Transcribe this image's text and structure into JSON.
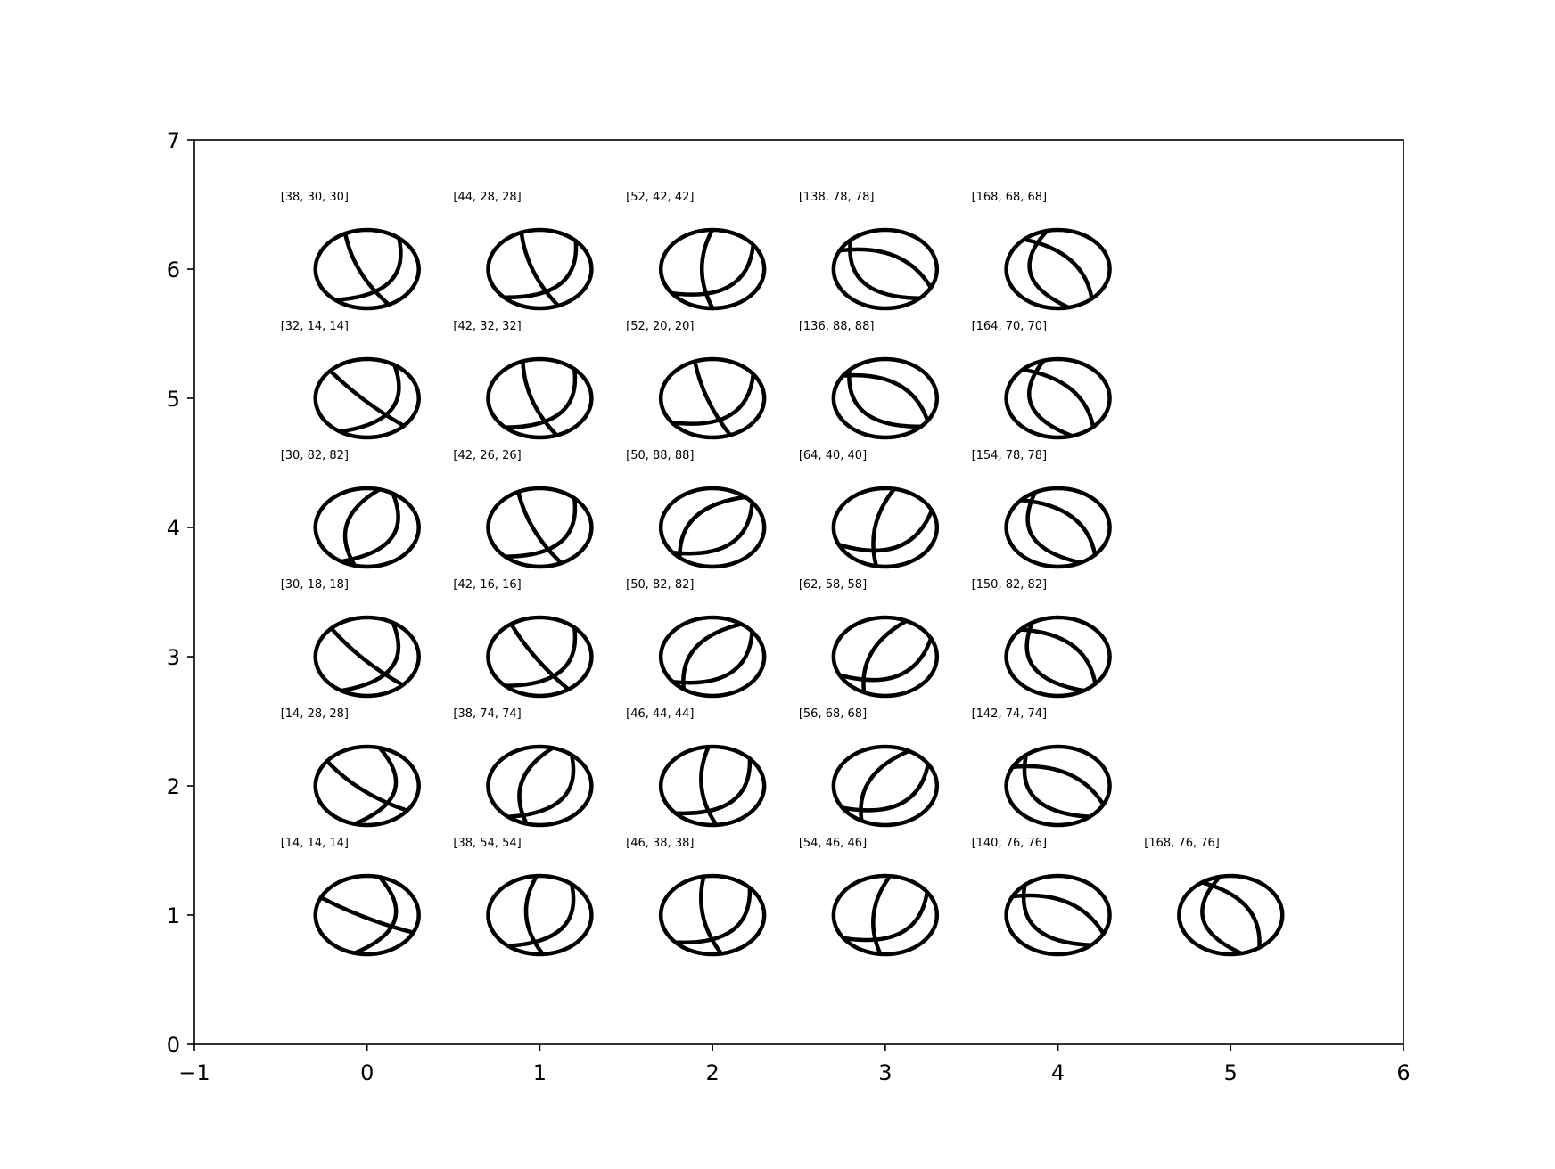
{
  "chart_data": {
    "type": "scatter",
    "title": "",
    "xlabel": "",
    "ylabel": "",
    "xlim": [
      -1,
      6
    ],
    "ylim": [
      0,
      7
    ],
    "xticks": [
      -1,
      0,
      1,
      2,
      3,
      4,
      5,
      6
    ],
    "yticks": [
      0,
      1,
      2,
      3,
      4,
      5,
      6,
      7
    ],
    "xtick_labels": [
      "−1",
      "0",
      "1",
      "2",
      "3",
      "4",
      "5",
      "6"
    ],
    "ytick_labels": [
      "0",
      "1",
      "2",
      "3",
      "4",
      "5",
      "6",
      "7"
    ],
    "marker": "beachball",
    "color": "#000000",
    "points": [
      {
        "x": 0,
        "y": 6,
        "label": "[38, 30, 30]",
        "strike": 38,
        "dip": 30,
        "rake": 30
      },
      {
        "x": 1,
        "y": 6,
        "label": "[44, 28, 28]",
        "strike": 44,
        "dip": 28,
        "rake": 28
      },
      {
        "x": 2,
        "y": 6,
        "label": "[52, 42, 42]",
        "strike": 52,
        "dip": 42,
        "rake": 42
      },
      {
        "x": 3,
        "y": 6,
        "label": "[138, 78, 78]",
        "strike": 138,
        "dip": 78,
        "rake": 78
      },
      {
        "x": 4,
        "y": 6,
        "label": "[168, 68, 68]",
        "strike": 168,
        "dip": 68,
        "rake": 68
      },
      {
        "x": 0,
        "y": 5,
        "label": "[32, 14, 14]",
        "strike": 32,
        "dip": 14,
        "rake": 14
      },
      {
        "x": 1,
        "y": 5,
        "label": "[42, 32, 32]",
        "strike": 42,
        "dip": 32,
        "rake": 32
      },
      {
        "x": 2,
        "y": 5,
        "label": "[52, 20, 20]",
        "strike": 52,
        "dip": 20,
        "rake": 20
      },
      {
        "x": 3,
        "y": 5,
        "label": "[136, 88, 88]",
        "strike": 136,
        "dip": 88,
        "rake": 88
      },
      {
        "x": 4,
        "y": 5,
        "label": "[164, 70, 70]",
        "strike": 164,
        "dip": 70,
        "rake": 70
      },
      {
        "x": 0,
        "y": 4,
        "label": "[30, 82, 82]",
        "strike": 30,
        "dip": 82,
        "rake": 82
      },
      {
        "x": 1,
        "y": 4,
        "label": "[42, 26, 26]",
        "strike": 42,
        "dip": 26,
        "rake": 26
      },
      {
        "x": 2,
        "y": 4,
        "label": "[50, 88, 88]",
        "strike": 50,
        "dip": 88,
        "rake": 88
      },
      {
        "x": 3,
        "y": 4,
        "label": "[64, 40, 40]",
        "strike": 64,
        "dip": 40,
        "rake": 40
      },
      {
        "x": 4,
        "y": 4,
        "label": "[154, 78, 78]",
        "strike": 154,
        "dip": 78,
        "rake": 78
      },
      {
        "x": 0,
        "y": 3,
        "label": "[30, 18, 18]",
        "strike": 30,
        "dip": 18,
        "rake": 18
      },
      {
        "x": 1,
        "y": 3,
        "label": "[42, 16, 16]",
        "strike": 42,
        "dip": 16,
        "rake": 16
      },
      {
        "x": 2,
        "y": 3,
        "label": "[50, 82, 82]",
        "strike": 50,
        "dip": 82,
        "rake": 82
      },
      {
        "x": 3,
        "y": 3,
        "label": "[62, 58, 58]",
        "strike": 62,
        "dip": 58,
        "rake": 58
      },
      {
        "x": 4,
        "y": 3,
        "label": "[150, 82, 82]",
        "strike": 150,
        "dip": 82,
        "rake": 82
      },
      {
        "x": 0,
        "y": 2,
        "label": "[14, 28, 28]",
        "strike": 14,
        "dip": 28,
        "rake": 28
      },
      {
        "x": 1,
        "y": 2,
        "label": "[38, 74, 74]",
        "strike": 38,
        "dip": 74,
        "rake": 74
      },
      {
        "x": 2,
        "y": 2,
        "label": "[46, 44, 44]",
        "strike": 46,
        "dip": 44,
        "rake": 44
      },
      {
        "x": 3,
        "y": 2,
        "label": "[56, 68, 68]",
        "strike": 56,
        "dip": 68,
        "rake": 68
      },
      {
        "x": 4,
        "y": 2,
        "label": "[142, 74, 74]",
        "strike": 142,
        "dip": 74,
        "rake": 74
      },
      {
        "x": 0,
        "y": 1,
        "label": "[14, 14, 14]",
        "strike": 14,
        "dip": 14,
        "rake": 14
      },
      {
        "x": 1,
        "y": 1,
        "label": "[38, 54, 54]",
        "strike": 38,
        "dip": 54,
        "rake": 54
      },
      {
        "x": 2,
        "y": 1,
        "label": "[46, 38, 38]",
        "strike": 46,
        "dip": 38,
        "rake": 38
      },
      {
        "x": 3,
        "y": 1,
        "label": "[54, 46, 46]",
        "strike": 54,
        "dip": 46,
        "rake": 46
      },
      {
        "x": 4,
        "y": 1,
        "label": "[140, 76, 76]",
        "strike": 140,
        "dip": 76,
        "rake": 76
      },
      {
        "x": 5,
        "y": 1,
        "label": "[168, 76, 76]",
        "strike": 168,
        "dip": 76,
        "rake": 76
      }
    ]
  }
}
